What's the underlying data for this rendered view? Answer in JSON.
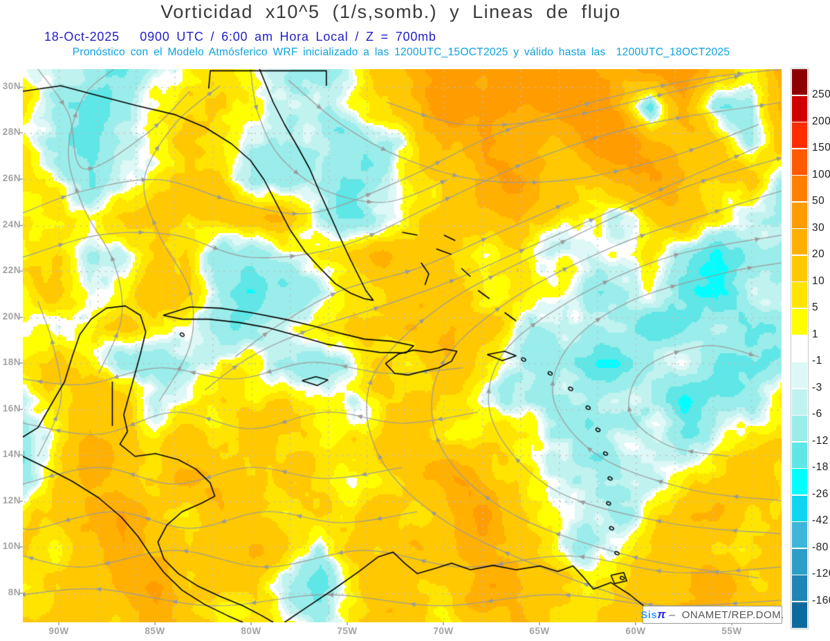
{
  "header": {
    "title": "Vorticidad x10^5 (1/s,somb.) y Lineas de flujo",
    "subtitle_datetime": "18-Oct-2025   0900 UTC / 6:00 am Hora Local / Z = 700mb",
    "subtitle_model": "Pronóstico con el Modelo Atmósferico WRF inicializado a las 1200UTC_15OCT2025 y válido hasta las  1200UTC_18OCT2025",
    "title_color": "#3a3a3a",
    "datetime_color": "#2320c8",
    "model_color": "#0ba2df"
  },
  "map": {
    "lat_labels": [
      "30N",
      "28N",
      "26N",
      "24N",
      "22N",
      "20N",
      "18N",
      "16N",
      "14N",
      "12N",
      "10N",
      "8N"
    ],
    "lon_labels": [
      "90W",
      "85W",
      "80W",
      "75W",
      "70W",
      "65W",
      "60W",
      "55W"
    ],
    "label_color": "#a3a3a3",
    "grid_color": "#bdbdbd",
    "streamline_color": "#9a9a9a",
    "coastline_color": "#000000"
  },
  "colorbar": {
    "tick_labels": [
      "250",
      "200",
      "150",
      "100",
      "50",
      "30",
      "20",
      "10",
      "5",
      "1",
      "-1",
      "-3",
      "-6",
      "-12",
      "-18",
      "-26",
      "-42",
      "-80",
      "-120",
      "-160"
    ],
    "colors_top_to_bottom": [
      "#8F0000",
      "#D10000",
      "#FF2D00",
      "#FF5A00",
      "#FF8000",
      "#FF9C00",
      "#FFB000",
      "#FFC800",
      "#FFE400",
      "#FFFF00",
      "#FFFFFF",
      "#DDF8F6",
      "#C0F2F0",
      "#9AEDEA",
      "#5FE6E6",
      "#00FFFF",
      "#0ED6EE",
      "#3DB6DA",
      "#2D9EC6",
      "#1E85B4",
      "#0C6A9C"
    ]
  },
  "logo": {
    "prefix": "Sis",
    "pi": "π",
    "dash": " –  ",
    "suffix": "ONAMET/REP.DOM.",
    "prefix_color": "#3d9bff",
    "pi_color": "#2a2ae6",
    "suffix_color": "#555555"
  },
  "chart_data": {
    "type": "heatmap",
    "title": "Vorticidad x10^5 (1/s,somb.) y Lineas de flujo",
    "variable": "relative vorticity",
    "units": "x10^-5 1/s",
    "pressure_level": "700mb",
    "valid_time": "18-Oct-2025 0900 UTC / 6:00 am Hora Local",
    "model_init": "1200UTC_15OCT2025",
    "model_valid_until": "1200UTC_18OCT2025",
    "lon_extent_degW": [
      91.9,
      52.4
    ],
    "lat_extent_degN": [
      6.8,
      30.8
    ],
    "lat_gridline_step_deg": 2,
    "lon_gridline_step_deg": 2,
    "shading_levels": [
      -160,
      -120,
      -80,
      -42,
      -26,
      -18,
      -12,
      -6,
      -3,
      -1,
      1,
      5,
      10,
      20,
      30,
      50,
      100,
      150,
      200,
      250
    ],
    "shading_colors_cold_to_hot": [
      "#0C6A9C",
      "#1E85B4",
      "#2D9EC6",
      "#3DB6DA",
      "#0ED6EE",
      "#00FFFF",
      "#5FE6E6",
      "#9AEDEA",
      "#C0F2F0",
      "#DDF8F6",
      "#FFFFFF",
      "#FFFF00",
      "#FFE400",
      "#FFC800",
      "#FFB000",
      "#FF9C00",
      "#FF8000",
      "#FF5A00",
      "#FF2D00",
      "#D10000",
      "#8F0000"
    ],
    "field": {
      "note": "coarse vorticity grid x10^-5 1/s, rows north to south across map extent",
      "values": [
        [
          6,
          0,
          -12,
          -16,
          -6,
          4,
          8,
          2,
          -4,
          -6,
          4,
          14,
          28,
          38,
          25,
          40,
          50,
          32,
          20,
          30,
          42,
          18,
          8,
          22
        ],
        [
          4,
          -4,
          -18,
          -10,
          0,
          8,
          4,
          -2,
          -8,
          -10,
          0,
          10,
          22,
          42,
          32,
          28,
          38,
          48,
          28,
          -18,
          28,
          -8,
          -15,
          26
        ],
        [
          8,
          -8,
          -20,
          -6,
          2,
          12,
          4,
          -6,
          -10,
          -6,
          -8,
          -12,
          8,
          20,
          38,
          22,
          18,
          32,
          40,
          22,
          12,
          18,
          -12,
          16
        ],
        [
          10,
          2,
          -12,
          -2,
          8,
          16,
          8,
          -8,
          -12,
          -8,
          -14,
          -8,
          4,
          12,
          24,
          32,
          14,
          10,
          22,
          30,
          18,
          8,
          14,
          -6
        ],
        [
          6,
          10,
          4,
          12,
          20,
          12,
          18,
          24,
          14,
          -6,
          -12,
          -2,
          10,
          18,
          12,
          20,
          10,
          4,
          -4,
          12,
          22,
          10,
          -4,
          -8
        ],
        [
          2,
          6,
          -6,
          -2,
          10,
          6,
          -10,
          -16,
          -6,
          8,
          14,
          20,
          12,
          8,
          -2,
          6,
          -8,
          -4,
          2,
          8,
          -10,
          -16,
          -4,
          -8
        ],
        [
          8,
          12,
          -4,
          6,
          14,
          4,
          -8,
          -14,
          -18,
          -6,
          4,
          14,
          20,
          12,
          4,
          10,
          4,
          -6,
          -10,
          -4,
          -12,
          -20,
          -8,
          -4
        ],
        [
          4,
          -6,
          2,
          10,
          4,
          -4,
          -12,
          -8,
          -2,
          8,
          16,
          10,
          18,
          24,
          12,
          -2,
          -6,
          -4,
          -8,
          -14,
          -8,
          -4,
          -10,
          -6
        ],
        [
          10,
          16,
          6,
          -8,
          -12,
          -4,
          8,
          4,
          -6,
          -10,
          2,
          12,
          8,
          16,
          6,
          -4,
          -8,
          -12,
          -18,
          -10,
          -4,
          -8,
          -14,
          -6
        ],
        [
          2,
          8,
          18,
          10,
          -6,
          4,
          12,
          8,
          14,
          6,
          -4,
          6,
          16,
          10,
          -2,
          -6,
          -10,
          -6,
          -4,
          -8,
          -16,
          -10,
          -6,
          4
        ],
        [
          -6,
          4,
          22,
          14,
          6,
          16,
          10,
          18,
          12,
          4,
          10,
          18,
          12,
          6,
          10,
          4,
          -6,
          -8,
          -2,
          -6,
          -10,
          -4,
          8,
          12
        ],
        [
          -10,
          8,
          28,
          18,
          8,
          20,
          14,
          8,
          16,
          10,
          6,
          12,
          20,
          30,
          14,
          8,
          -4,
          -8,
          -12,
          -6,
          4,
          10,
          16,
          8
        ],
        [
          4,
          14,
          20,
          26,
          12,
          6,
          18,
          12,
          6,
          14,
          8,
          16,
          10,
          22,
          35,
          10,
          2,
          -6,
          -8,
          2,
          12,
          18,
          10,
          14
        ],
        [
          8,
          6,
          12,
          30,
          20,
          8,
          14,
          20,
          10,
          -8,
          12,
          8,
          18,
          14,
          28,
          16,
          6,
          -4,
          2,
          10,
          22,
          12,
          8,
          18
        ],
        [
          4,
          10,
          18,
          24,
          35,
          14,
          8,
          12,
          -6,
          -10,
          6,
          14,
          8,
          16,
          30,
          20,
          10,
          4,
          12,
          20,
          15,
          25,
          14,
          10
        ],
        [
          10,
          15,
          8,
          14,
          28,
          18,
          6,
          10,
          4,
          -6,
          10,
          18,
          12,
          8,
          14,
          25,
          12,
          8,
          16,
          12,
          25,
          18,
          10,
          20
        ]
      ]
    },
    "streamlines": [
      [
        [
          0.0,
          0.26
        ],
        [
          0.08,
          0.22
        ],
        [
          0.18,
          0.2
        ],
        [
          0.28,
          0.24
        ],
        [
          0.38,
          0.26
        ],
        [
          0.5,
          0.2
        ],
        [
          0.62,
          0.12
        ],
        [
          0.75,
          0.06
        ],
        [
          0.88,
          0.02
        ],
        [
          1.0,
          0.0
        ]
      ],
      [
        [
          0.0,
          0.34
        ],
        [
          0.1,
          0.3
        ],
        [
          0.2,
          0.3
        ],
        [
          0.3,
          0.34
        ],
        [
          0.42,
          0.32
        ],
        [
          0.55,
          0.24
        ],
        [
          0.68,
          0.16
        ],
        [
          0.82,
          0.1
        ],
        [
          1.0,
          0.06
        ]
      ],
      [
        [
          0.02,
          0.0
        ],
        [
          0.06,
          0.08
        ],
        [
          0.08,
          0.18
        ],
        [
          0.16,
          0.12
        ],
        [
          0.22,
          0.04
        ]
      ],
      [
        [
          0.48,
          0.06
        ],
        [
          0.58,
          0.1
        ],
        [
          0.7,
          0.09
        ],
        [
          0.83,
          0.05
        ],
        [
          0.95,
          0.01
        ]
      ],
      [
        [
          0.35,
          0.02
        ],
        [
          0.42,
          0.1
        ],
        [
          0.5,
          0.16
        ],
        [
          0.6,
          0.2
        ],
        [
          0.72,
          0.2
        ],
        [
          0.85,
          0.16
        ],
        [
          0.97,
          0.1
        ]
      ],
      [
        [
          0.3,
          0.0
        ],
        [
          0.31,
          0.08
        ],
        [
          0.34,
          0.16
        ],
        [
          0.4,
          0.22
        ],
        [
          0.48,
          0.24
        ],
        [
          0.56,
          0.2
        ]
      ],
      [
        [
          1.0,
          0.78
        ],
        [
          0.88,
          0.76
        ],
        [
          0.76,
          0.7
        ],
        [
          0.7,
          0.6
        ],
        [
          0.72,
          0.5
        ],
        [
          0.8,
          0.42
        ],
        [
          0.92,
          0.37
        ],
        [
          1.0,
          0.35
        ]
      ],
      [
        [
          1.0,
          0.84
        ],
        [
          0.85,
          0.82
        ],
        [
          0.7,
          0.76
        ],
        [
          0.62,
          0.64
        ],
        [
          0.63,
          0.52
        ],
        [
          0.72,
          0.42
        ],
        [
          0.85,
          0.34
        ],
        [
          1.0,
          0.3
        ]
      ],
      [
        [
          0.97,
          0.92
        ],
        [
          0.8,
          0.88
        ],
        [
          0.64,
          0.8
        ],
        [
          0.55,
          0.68
        ],
        [
          0.55,
          0.54
        ],
        [
          0.64,
          0.42
        ],
        [
          0.78,
          0.32
        ],
        [
          0.93,
          0.25
        ],
        [
          1.0,
          0.22
        ]
      ],
      [
        [
          0.9,
          1.0
        ],
        [
          0.72,
          0.92
        ],
        [
          0.56,
          0.82
        ],
        [
          0.47,
          0.7
        ],
        [
          0.46,
          0.56
        ],
        [
          0.55,
          0.43
        ],
        [
          0.7,
          0.32
        ],
        [
          0.86,
          0.22
        ],
        [
          1.0,
          0.16
        ]
      ],
      [
        [
          0.93,
          0.7
        ],
        [
          0.85,
          0.68
        ],
        [
          0.8,
          0.62
        ],
        [
          0.82,
          0.54
        ],
        [
          0.9,
          0.5
        ],
        [
          0.97,
          0.52
        ]
      ],
      [
        [
          1.0,
          0.96
        ],
        [
          0.85,
          0.97
        ],
        [
          0.7,
          0.95
        ],
        [
          0.55,
          0.97
        ],
        [
          0.4,
          0.95
        ],
        [
          0.25,
          0.97
        ],
        [
          0.1,
          0.94
        ],
        [
          0.0,
          0.95
        ]
      ],
      [
        [
          1.0,
          0.9
        ],
        [
          0.86,
          0.91
        ],
        [
          0.72,
          0.88
        ],
        [
          0.58,
          0.9
        ],
        [
          0.45,
          0.87
        ],
        [
          0.32,
          0.9
        ],
        [
          0.2,
          0.87
        ],
        [
          0.08,
          0.9
        ],
        [
          0.0,
          0.88
        ]
      ],
      [
        [
          0.52,
          0.8
        ],
        [
          0.42,
          0.82
        ],
        [
          0.32,
          0.8
        ],
        [
          0.22,
          0.83
        ],
        [
          0.12,
          0.8
        ],
        [
          0.02,
          0.83
        ],
        [
          0.0,
          0.83
        ]
      ],
      [
        [
          0.5,
          0.72
        ],
        [
          0.4,
          0.74
        ],
        [
          0.3,
          0.72
        ],
        [
          0.2,
          0.75
        ],
        [
          0.1,
          0.72
        ],
        [
          0.0,
          0.75
        ]
      ],
      [
        [
          0.6,
          0.62
        ],
        [
          0.5,
          0.64
        ],
        [
          0.4,
          0.62
        ],
        [
          0.3,
          0.65
        ],
        [
          0.2,
          0.62
        ],
        [
          0.1,
          0.66
        ],
        [
          0.0,
          0.64
        ]
      ],
      [
        [
          0.58,
          0.54
        ],
        [
          0.48,
          0.55
        ],
        [
          0.38,
          0.53
        ],
        [
          0.28,
          0.56
        ],
        [
          0.18,
          0.54
        ],
        [
          0.08,
          0.57
        ],
        [
          0.0,
          0.56
        ]
      ],
      [
        [
          0.1,
          0.55
        ],
        [
          0.13,
          0.45
        ],
        [
          0.12,
          0.35
        ],
        [
          0.08,
          0.25
        ],
        [
          0.06,
          0.15
        ],
        [
          0.08,
          0.05
        ],
        [
          0.12,
          0.0
        ]
      ],
      [
        [
          0.18,
          0.6
        ],
        [
          0.22,
          0.5
        ],
        [
          0.22,
          0.4
        ],
        [
          0.18,
          0.3
        ],
        [
          0.16,
          0.2
        ],
        [
          0.2,
          0.1
        ],
        [
          0.26,
          0.03
        ]
      ],
      [
        [
          0.02,
          0.7
        ],
        [
          0.05,
          0.6
        ],
        [
          0.04,
          0.5
        ],
        [
          0.02,
          0.42
        ]
      ],
      [
        [
          0.28,
          0.52
        ],
        [
          0.34,
          0.46
        ],
        [
          0.42,
          0.4
        ],
        [
          0.52,
          0.36
        ],
        [
          0.62,
          0.3
        ],
        [
          0.72,
          0.24
        ]
      ],
      [
        [
          0.24,
          0.58
        ],
        [
          0.3,
          0.52
        ],
        [
          0.38,
          0.47
        ],
        [
          0.47,
          0.43
        ],
        [
          0.57,
          0.38
        ],
        [
          0.67,
          0.32
        ],
        [
          0.77,
          0.26
        ],
        [
          0.87,
          0.2
        ],
        [
          0.97,
          0.14
        ]
      ]
    ]
  }
}
